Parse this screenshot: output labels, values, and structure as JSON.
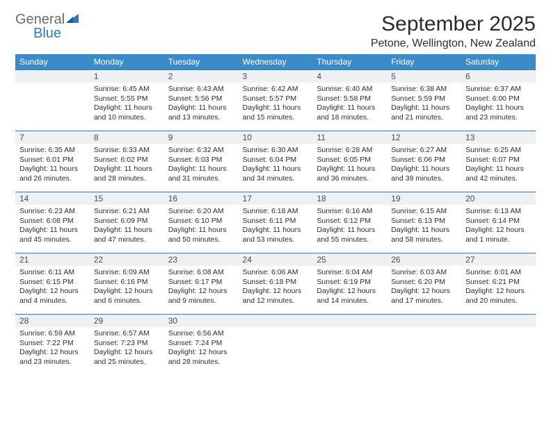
{
  "logo": {
    "line1": "General",
    "line2": "Blue"
  },
  "header": {
    "month_title": "September 2025",
    "location": "Petone, Wellington, New Zealand"
  },
  "colors": {
    "header_bg": "#3b8bc9",
    "header_fg": "#ffffff",
    "rule": "#2f78b9",
    "daynum_bg": "#eef0f2",
    "text": "#2b2b2b",
    "logo_gray": "#6a6a6a",
    "logo_blue": "#2f78b9",
    "page_bg": "#ffffff"
  },
  "day_headers": [
    "Sunday",
    "Monday",
    "Tuesday",
    "Wednesday",
    "Thursday",
    "Friday",
    "Saturday"
  ],
  "weeks": [
    [
      {
        "num": "",
        "sunrise": "",
        "sunset": "",
        "daylight": ""
      },
      {
        "num": "1",
        "sunrise": "Sunrise: 6:45 AM",
        "sunset": "Sunset: 5:55 PM",
        "daylight": "Daylight: 11 hours and 10 minutes."
      },
      {
        "num": "2",
        "sunrise": "Sunrise: 6:43 AM",
        "sunset": "Sunset: 5:56 PM",
        "daylight": "Daylight: 11 hours and 13 minutes."
      },
      {
        "num": "3",
        "sunrise": "Sunrise: 6:42 AM",
        "sunset": "Sunset: 5:57 PM",
        "daylight": "Daylight: 11 hours and 15 minutes."
      },
      {
        "num": "4",
        "sunrise": "Sunrise: 6:40 AM",
        "sunset": "Sunset: 5:58 PM",
        "daylight": "Daylight: 11 hours and 18 minutes."
      },
      {
        "num": "5",
        "sunrise": "Sunrise: 6:38 AM",
        "sunset": "Sunset: 5:59 PM",
        "daylight": "Daylight: 11 hours and 21 minutes."
      },
      {
        "num": "6",
        "sunrise": "Sunrise: 6:37 AM",
        "sunset": "Sunset: 6:00 PM",
        "daylight": "Daylight: 11 hours and 23 minutes."
      }
    ],
    [
      {
        "num": "7",
        "sunrise": "Sunrise: 6:35 AM",
        "sunset": "Sunset: 6:01 PM",
        "daylight": "Daylight: 11 hours and 26 minutes."
      },
      {
        "num": "8",
        "sunrise": "Sunrise: 6:33 AM",
        "sunset": "Sunset: 6:02 PM",
        "daylight": "Daylight: 11 hours and 28 minutes."
      },
      {
        "num": "9",
        "sunrise": "Sunrise: 6:32 AM",
        "sunset": "Sunset: 6:03 PM",
        "daylight": "Daylight: 11 hours and 31 minutes."
      },
      {
        "num": "10",
        "sunrise": "Sunrise: 6:30 AM",
        "sunset": "Sunset: 6:04 PM",
        "daylight": "Daylight: 11 hours and 34 minutes."
      },
      {
        "num": "11",
        "sunrise": "Sunrise: 6:28 AM",
        "sunset": "Sunset: 6:05 PM",
        "daylight": "Daylight: 11 hours and 36 minutes."
      },
      {
        "num": "12",
        "sunrise": "Sunrise: 6:27 AM",
        "sunset": "Sunset: 6:06 PM",
        "daylight": "Daylight: 11 hours and 39 minutes."
      },
      {
        "num": "13",
        "sunrise": "Sunrise: 6:25 AM",
        "sunset": "Sunset: 6:07 PM",
        "daylight": "Daylight: 11 hours and 42 minutes."
      }
    ],
    [
      {
        "num": "14",
        "sunrise": "Sunrise: 6:23 AM",
        "sunset": "Sunset: 6:08 PM",
        "daylight": "Daylight: 11 hours and 45 minutes."
      },
      {
        "num": "15",
        "sunrise": "Sunrise: 6:21 AM",
        "sunset": "Sunset: 6:09 PM",
        "daylight": "Daylight: 11 hours and 47 minutes."
      },
      {
        "num": "16",
        "sunrise": "Sunrise: 6:20 AM",
        "sunset": "Sunset: 6:10 PM",
        "daylight": "Daylight: 11 hours and 50 minutes."
      },
      {
        "num": "17",
        "sunrise": "Sunrise: 6:18 AM",
        "sunset": "Sunset: 6:11 PM",
        "daylight": "Daylight: 11 hours and 53 minutes."
      },
      {
        "num": "18",
        "sunrise": "Sunrise: 6:16 AM",
        "sunset": "Sunset: 6:12 PM",
        "daylight": "Daylight: 11 hours and 55 minutes."
      },
      {
        "num": "19",
        "sunrise": "Sunrise: 6:15 AM",
        "sunset": "Sunset: 6:13 PM",
        "daylight": "Daylight: 11 hours and 58 minutes."
      },
      {
        "num": "20",
        "sunrise": "Sunrise: 6:13 AM",
        "sunset": "Sunset: 6:14 PM",
        "daylight": "Daylight: 12 hours and 1 minute."
      }
    ],
    [
      {
        "num": "21",
        "sunrise": "Sunrise: 6:11 AM",
        "sunset": "Sunset: 6:15 PM",
        "daylight": "Daylight: 12 hours and 4 minutes."
      },
      {
        "num": "22",
        "sunrise": "Sunrise: 6:09 AM",
        "sunset": "Sunset: 6:16 PM",
        "daylight": "Daylight: 12 hours and 6 minutes."
      },
      {
        "num": "23",
        "sunrise": "Sunrise: 6:08 AM",
        "sunset": "Sunset: 6:17 PM",
        "daylight": "Daylight: 12 hours and 9 minutes."
      },
      {
        "num": "24",
        "sunrise": "Sunrise: 6:06 AM",
        "sunset": "Sunset: 6:18 PM",
        "daylight": "Daylight: 12 hours and 12 minutes."
      },
      {
        "num": "25",
        "sunrise": "Sunrise: 6:04 AM",
        "sunset": "Sunset: 6:19 PM",
        "daylight": "Daylight: 12 hours and 14 minutes."
      },
      {
        "num": "26",
        "sunrise": "Sunrise: 6:03 AM",
        "sunset": "Sunset: 6:20 PM",
        "daylight": "Daylight: 12 hours and 17 minutes."
      },
      {
        "num": "27",
        "sunrise": "Sunrise: 6:01 AM",
        "sunset": "Sunset: 6:21 PM",
        "daylight": "Daylight: 12 hours and 20 minutes."
      }
    ],
    [
      {
        "num": "28",
        "sunrise": "Sunrise: 6:59 AM",
        "sunset": "Sunset: 7:22 PM",
        "daylight": "Daylight: 12 hours and 23 minutes."
      },
      {
        "num": "29",
        "sunrise": "Sunrise: 6:57 AM",
        "sunset": "Sunset: 7:23 PM",
        "daylight": "Daylight: 12 hours and 25 minutes."
      },
      {
        "num": "30",
        "sunrise": "Sunrise: 6:56 AM",
        "sunset": "Sunset: 7:24 PM",
        "daylight": "Daylight: 12 hours and 28 minutes."
      },
      {
        "num": "",
        "sunrise": "",
        "sunset": "",
        "daylight": ""
      },
      {
        "num": "",
        "sunrise": "",
        "sunset": "",
        "daylight": ""
      },
      {
        "num": "",
        "sunrise": "",
        "sunset": "",
        "daylight": ""
      },
      {
        "num": "",
        "sunrise": "",
        "sunset": "",
        "daylight": ""
      }
    ]
  ]
}
